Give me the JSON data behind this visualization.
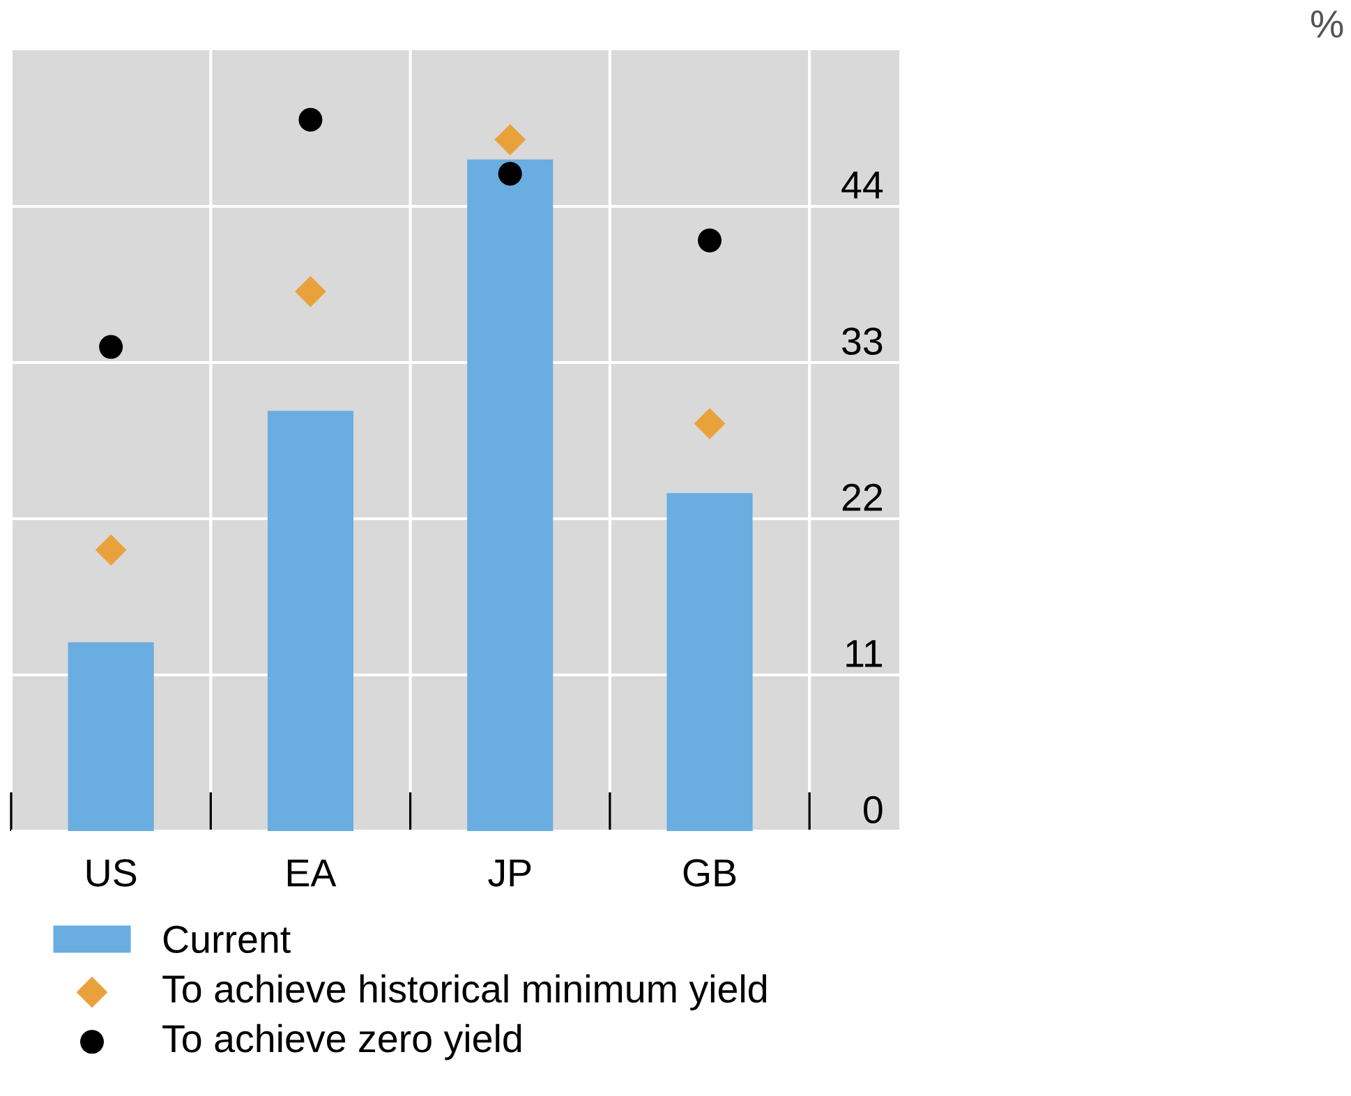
{
  "chart_data": {
    "type": "bar",
    "annotations": [
      "%"
    ],
    "categories": [
      "US",
      "EA",
      "JP",
      "GB"
    ],
    "series": [
      {
        "name": "Current",
        "color": "#6aade1",
        "values": [
          13.3,
          29.6,
          47.3,
          23.8
        ]
      },
      {
        "name": "To achieve historical minimum yield",
        "type": "scatter",
        "marker": "diamond",
        "color": "#e9a23b",
        "values": [
          19.8,
          38.0,
          48.7,
          28.7
        ]
      },
      {
        "name": "To achieve zero yield",
        "type": "scatter",
        "marker": "circle",
        "color": "#000000",
        "values": [
          34.1,
          50.1,
          46.3,
          41.6
        ]
      }
    ],
    "ylim": [
      0,
      55
    ],
    "yticks": [
      0,
      11,
      22,
      33,
      44
    ],
    "grid": true,
    "legend": "bottom"
  }
}
